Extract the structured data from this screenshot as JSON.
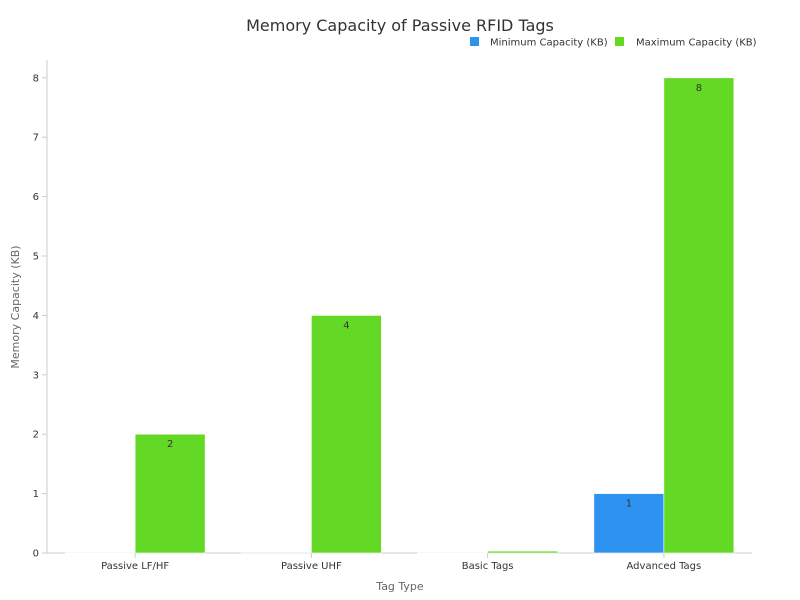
{
  "chart_data": {
    "type": "bar",
    "title": "Memory Capacity of Passive RFID Tags",
    "xlabel": "Tag Type",
    "ylabel": "Memory Capacity (KB)",
    "categories": [
      "Passive LF/HF",
      "Passive UHF",
      "Basic Tags",
      "Advanced Tags"
    ],
    "series": [
      {
        "name": "Minimum Capacity (KB)",
        "color": "#2e93f0",
        "values": [
          0.001,
          0.012,
          0.001,
          1
        ],
        "labels": [
          "",
          "",
          "",
          "1"
        ]
      },
      {
        "name": "Maximum Capacity (KB)",
        "color": "#63d926",
        "values": [
          2,
          4,
          0.032,
          8
        ],
        "labels": [
          "2",
          "4",
          "",
          "8"
        ]
      }
    ],
    "ylim": [
      0,
      8.3
    ],
    "yticks": [
      0,
      1,
      2,
      3,
      4,
      5,
      6,
      7,
      8
    ],
    "legend_position": "top-right",
    "grid": false
  }
}
